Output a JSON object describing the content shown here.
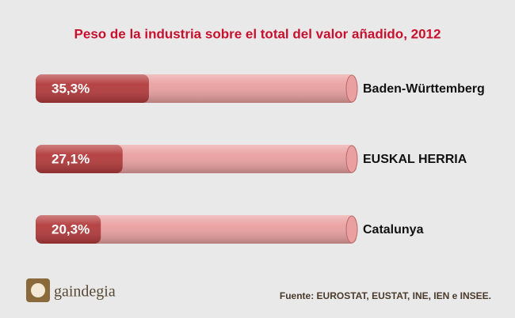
{
  "chart_data": {
    "type": "bar",
    "orientation": "horizontal",
    "title": "Peso de la industria sobre el total del valor añadido, 2012",
    "categories": [
      "Baden-Württemberg",
      "EUSKAL HERRIA",
      "Catalunya"
    ],
    "values": [
      35.3,
      27.1,
      20.3
    ],
    "value_labels": [
      "35,3%",
      "27,1%",
      "20,3%"
    ],
    "xlim": [
      0,
      100
    ],
    "color": "#b33a3b",
    "track_color": "#eaa0a0",
    "source": "Fuente: EUROSTAT, EUSTAT, INE, IEN e INSEE.",
    "logo": "gaindegia"
  }
}
